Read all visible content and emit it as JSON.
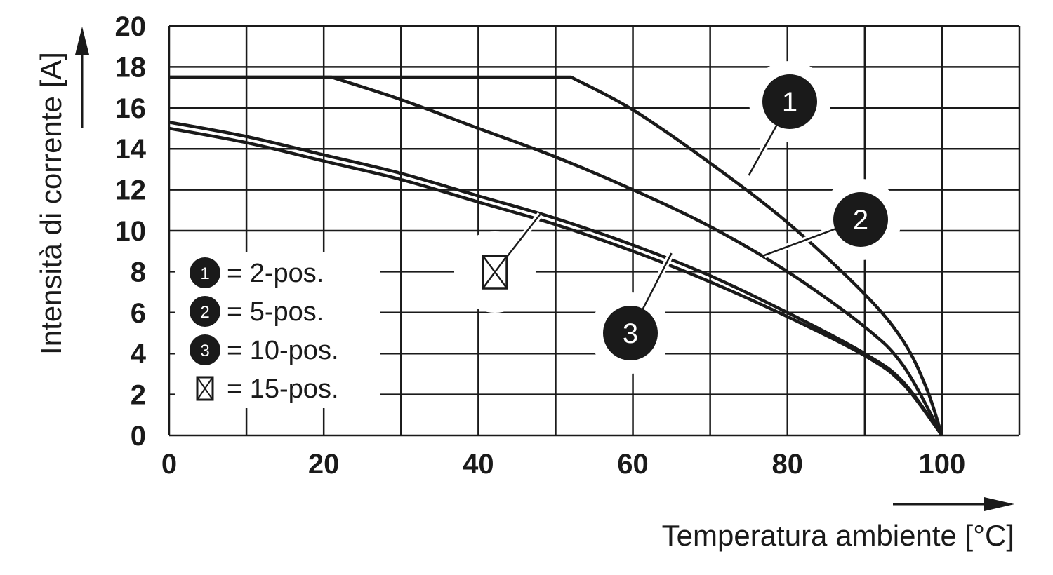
{
  "chart_data": {
    "type": "line",
    "xlabel": "Temperatura ambiente [°C]",
    "ylabel": "Intensità di corrente [A]",
    "xlim": [
      0,
      110
    ],
    "ylim": [
      0,
      20
    ],
    "x_ticks": [
      0,
      20,
      40,
      60,
      80,
      100
    ],
    "y_ticks": [
      0,
      2,
      4,
      6,
      8,
      10,
      12,
      14,
      16,
      18,
      20
    ],
    "grid": true,
    "legend_position": "left",
    "series": [
      {
        "marker": "1",
        "legend_label": "= 2-pos.",
        "points": [
          [
            0,
            17.5
          ],
          [
            52,
            17.5
          ],
          [
            60,
            15.9
          ],
          [
            70,
            13.3
          ],
          [
            80,
            10.4
          ],
          [
            90,
            6.9
          ],
          [
            95,
            4.6
          ],
          [
            98,
            2.3
          ],
          [
            100,
            0
          ]
        ]
      },
      {
        "marker": "2",
        "legend_label": "= 5-pos.",
        "points": [
          [
            0,
            17.5
          ],
          [
            21,
            17.5
          ],
          [
            30,
            16.4
          ],
          [
            40,
            15.0
          ],
          [
            50,
            13.6
          ],
          [
            60,
            12.0
          ],
          [
            70,
            10.2
          ],
          [
            80,
            8.0
          ],
          [
            90,
            5.3
          ],
          [
            95,
            3.4
          ],
          [
            100,
            0
          ]
        ]
      },
      {
        "marker": "3",
        "legend_label": "= 10-pos.",
        "points": [
          [
            0,
            15.3
          ],
          [
            10,
            14.6
          ],
          [
            20,
            13.7
          ],
          [
            30,
            12.8
          ],
          [
            40,
            11.7
          ],
          [
            50,
            10.6
          ],
          [
            60,
            9.3
          ],
          [
            70,
            7.8
          ],
          [
            80,
            6.0
          ],
          [
            90,
            4.0
          ],
          [
            95,
            2.6
          ],
          [
            100,
            0
          ]
        ]
      },
      {
        "marker": "crossed-box",
        "legend_label": "= 15-pos.",
        "points": [
          [
            0,
            15.0
          ],
          [
            10,
            14.3
          ],
          [
            20,
            13.4
          ],
          [
            30,
            12.5
          ],
          [
            40,
            11.4
          ],
          [
            50,
            10.3
          ],
          [
            60,
            9.0
          ],
          [
            70,
            7.5
          ],
          [
            80,
            5.8
          ],
          [
            90,
            3.9
          ],
          [
            95,
            2.5
          ],
          [
            100,
            0
          ]
        ]
      }
    ],
    "callouts": [
      {
        "marker": "1",
        "x": 75,
        "y": 12.7
      },
      {
        "marker": "2",
        "x": 77,
        "y": 8.8
      },
      {
        "marker": "3",
        "x": 65,
        "y": 8.9
      },
      {
        "marker": "crossed-box",
        "x": 48,
        "y": 10.8
      }
    ],
    "colors": {
      "line": "#1a1a1a",
      "grid": "#1a1a1a",
      "badge": "#1a1a1a"
    }
  }
}
